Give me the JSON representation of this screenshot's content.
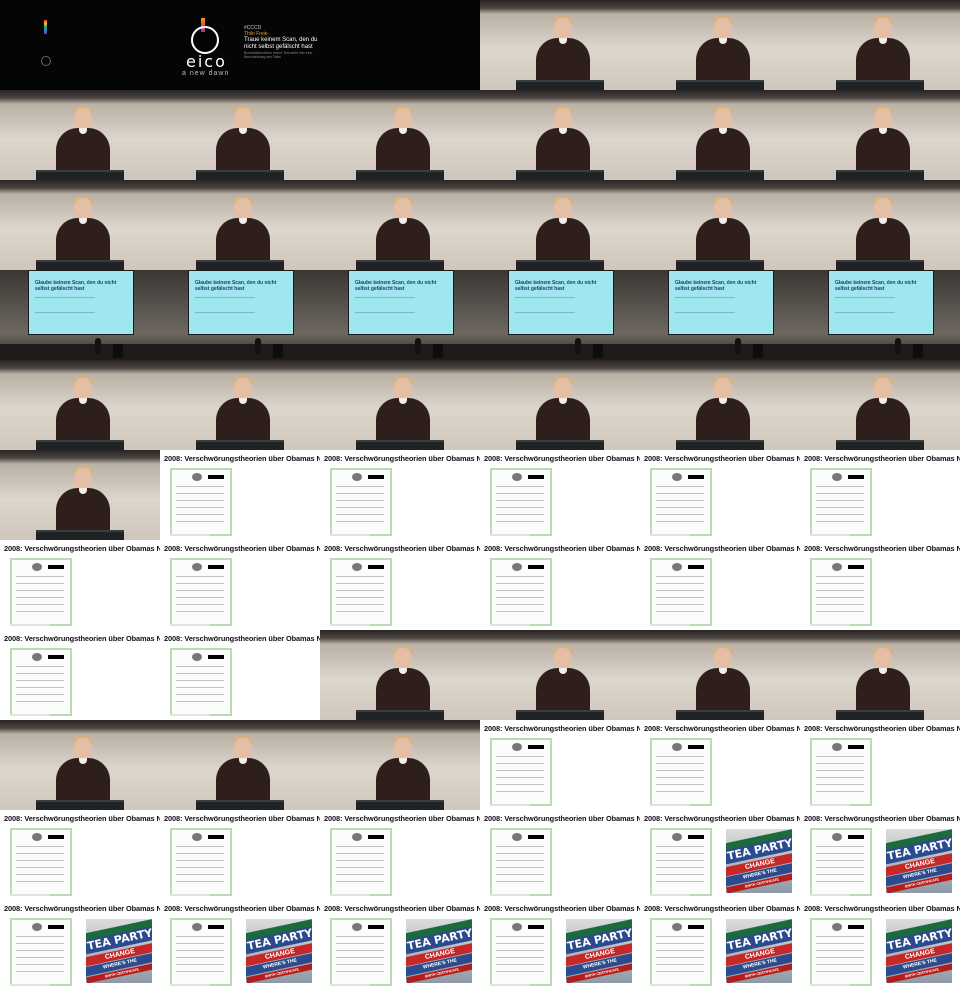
{
  "sheet": {
    "columns": 6,
    "rows": 11
  },
  "intro": {
    "logo_word": "eico",
    "logo_sub": "a new dawn",
    "label": "#CCCD",
    "accent": "Thilo Freie",
    "title": "Traue keinem Scan, den du nicht selbst gefälscht hast",
    "description": "Buchstabenreihen fremd Text steht hier eine Beschreibung des Talks"
  },
  "slide": {
    "title": "Glaube keinem Scan, den du nicht selbst gefälscht hast"
  },
  "doc": {
    "title": "2008: Verschwörungstheorien über Obamas Nationalität"
  },
  "poster": {
    "top": "SIGN TEA ANOTHER",
    "tea": "TEA PARTY",
    "change": "CHANGE",
    "wheres": "WHERE'S THE",
    "birth": "BIRTH CERTIFICATE"
  },
  "frames": [
    "intro_dark",
    "intro_logo",
    "blank_dark",
    "speaker",
    "speaker",
    "speaker",
    "speaker",
    "speaker",
    "speaker",
    "speaker",
    "speaker",
    "speaker",
    "speaker",
    "speaker",
    "speaker",
    "speaker",
    "speaker",
    "speaker",
    "stage",
    "stage",
    "stage",
    "stage",
    "stage",
    "stage",
    "speaker",
    "speaker",
    "speaker",
    "speaker",
    "speaker",
    "speaker",
    "speaker",
    "doc",
    "doc",
    "doc",
    "doc",
    "doc",
    "doc",
    "doc",
    "doc",
    "doc",
    "doc",
    "doc",
    "doc",
    "doc",
    "speaker",
    "speaker",
    "speaker",
    "speaker",
    "speaker",
    "speaker",
    "speaker",
    "doc",
    "doc",
    "doc",
    "doc",
    "doc",
    "doc",
    "doc",
    "doc_poster",
    "doc_poster",
    "doc_poster",
    "doc_poster",
    "doc_poster",
    "doc_poster",
    "doc_poster",
    "doc_poster"
  ],
  "colors": {
    "slide_bg": "#9fe6ef",
    "slide_text": "#1d3f6e",
    "cert_border": "#b7ddb0",
    "podium": "#202326",
    "sweater": "#2e1f1c"
  }
}
